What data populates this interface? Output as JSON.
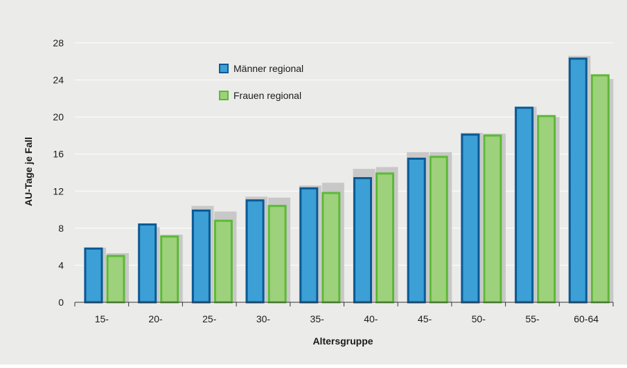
{
  "colors": {
    "background": "#ebebe9",
    "grid": "#ffffff",
    "axis": "#333333",
    "reference_bar": "#c8c8c8",
    "male_fill": "#3c9fd6",
    "male_border": "#0b5a95",
    "female_fill": "#9ed17b",
    "female_border": "#5cb936"
  },
  "chart_data": {
    "type": "bar",
    "xlabel": "Altersgruppe",
    "ylabel": "AU-Tage je Fall",
    "ylim": [
      0,
      28
    ],
    "yticks": [
      "0",
      "4",
      "8",
      "12",
      "16",
      "20",
      "24",
      "28"
    ],
    "grid": true,
    "legend_position": "top-left",
    "categories": [
      "15-",
      "20-",
      "25-",
      "30-",
      "35-",
      "40-",
      "45-",
      "50-",
      "55-",
      "60-64"
    ],
    "series": [
      {
        "name": "Männer regional",
        "values": [
          5.8,
          8.4,
          9.9,
          11.0,
          12.3,
          13.4,
          15.5,
          18.1,
          21.0,
          26.3
        ]
      },
      {
        "name": "Frauen regional",
        "values": [
          5.0,
          7.1,
          8.8,
          10.4,
          11.8,
          13.9,
          15.7,
          18.0,
          20.1,
          24.5
        ]
      }
    ],
    "reference_series": [
      {
        "values": [
          5.9,
          8.1,
          10.4,
          11.4,
          12.6,
          14.4,
          16.2,
          18.3,
          21.1,
          26.6
        ]
      },
      {
        "values": [
          5.3,
          7.3,
          9.8,
          11.3,
          12.9,
          14.6,
          16.2,
          18.2,
          20.0,
          24.1
        ]
      }
    ]
  }
}
